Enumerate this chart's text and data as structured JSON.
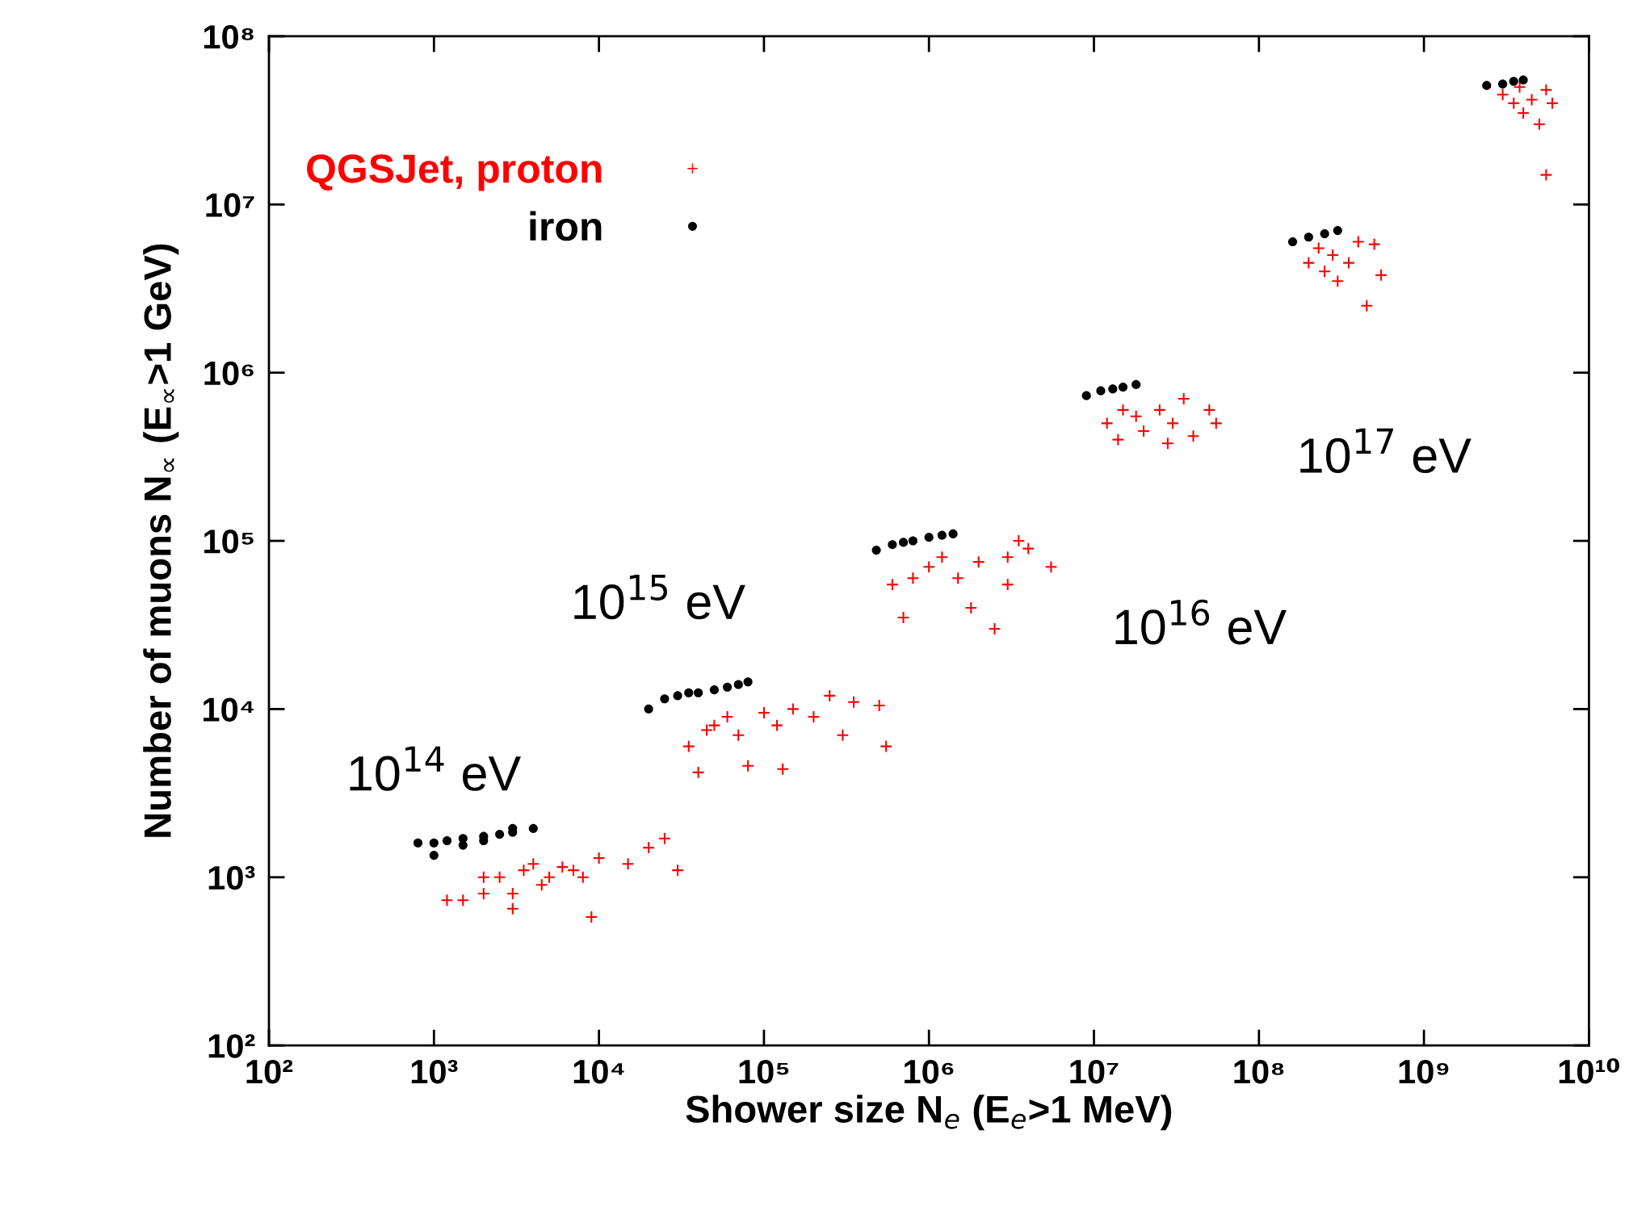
{
  "chart_data": {
    "type": "scatter",
    "xlabel": "Shower size N$_{e}$ (E$_{e}$>1 MeV)",
    "ylabel": "Number of muons N$_{∝}$ (E$_{∝}$>1 GeV)",
    "log": "xy",
    "grid": false,
    "legend": "top left",
    "xlim": [
      100,
      10000000000
    ],
    "ylim": [
      100,
      100000000
    ],
    "xticks": [
      {
        "value": 100,
        "label": "10²"
      },
      {
        "value": 1000,
        "label": "10³"
      },
      {
        "value": 10000,
        "label": "10⁴"
      },
      {
        "value": 100000,
        "label": "10⁵"
      },
      {
        "value": 1000000,
        "label": "10⁶"
      },
      {
        "value": 10000000,
        "label": "10⁷"
      },
      {
        "value": 100000000,
        "label": "10⁸"
      },
      {
        "value": 1000000000,
        "label": "10⁹"
      },
      {
        "value": 10000000000,
        "label": "10¹⁰"
      }
    ],
    "yticks": [
      {
        "value": 100,
        "label": "10²"
      },
      {
        "value": 1000,
        "label": "10³"
      },
      {
        "value": 10000,
        "label": "10⁴"
      },
      {
        "value": 100000,
        "label": "10⁵"
      },
      {
        "value": 1000000,
        "label": "10⁶"
      },
      {
        "value": 10000000,
        "label": "10⁷"
      },
      {
        "value": 100000000,
        "label": "10⁸"
      }
    ],
    "annotations": [
      "10$^{14}$ eV",
      "10$^{15}$ eV",
      "10$^{16}$ eV",
      "10$^{17}$ eV"
    ],
    "series": [
      {
        "name": "QGSJet, proton",
        "color": "#ff0000",
        "marker": "cross",
        "x": [
          1200,
          1500,
          2000,
          2500,
          3000,
          3500,
          4000,
          5000,
          6000,
          8000,
          9000,
          10000,
          15000,
          20000,
          25000,
          30000,
          3000,
          4500,
          7000,
          2000,
          35000,
          40000,
          50000,
          60000,
          70000,
          80000,
          100000,
          120000,
          130000,
          150000,
          200000,
          250000,
          300000,
          350000,
          500000,
          550000,
          45000,
          600000,
          700000,
          800000,
          1000000,
          1200000,
          1500000,
          1800000,
          2000000,
          2500000,
          3000000,
          3500000,
          4000000,
          5500000,
          3000000,
          12000000,
          14000000,
          15000000,
          18000000,
          20000000,
          25000000,
          30000000,
          35000000,
          40000000,
          50000000,
          55000000,
          28000000,
          200000000,
          230000000,
          250000000,
          280000000,
          300000000,
          350000000,
          400000000,
          450000000,
          500000000,
          550000000,
          3000000000,
          3500000000,
          4000000000,
          4500000000,
          5000000000,
          5500000000,
          6000000000,
          5500000000,
          3800000000
        ],
        "values": [
          730,
          730,
          1000,
          1000,
          800,
          1100,
          1200,
          1000,
          1150,
          1000,
          580,
          1300,
          1200,
          1500,
          1700,
          1100,
          650,
          900,
          1100,
          800,
          6000,
          4200,
          8000,
          9000,
          7000,
          4600,
          9500,
          8000,
          4400,
          10000,
          9000,
          12000,
          7000,
          11000,
          10500,
          6000,
          7500,
          55000,
          35000,
          60000,
          70000,
          80000,
          60000,
          40000,
          75000,
          30000,
          80000,
          100000,
          90000,
          70000,
          55000,
          500000,
          400000,
          600000,
          550000,
          450000,
          600000,
          500000,
          700000,
          420000,
          600000,
          500000,
          380000,
          4500000,
          5500000,
          4000000,
          5000000,
          3500000,
          4500000,
          6000000,
          2500000,
          5800000,
          3800000,
          45000000,
          40000000,
          35000000,
          42000000,
          30000000,
          48000000,
          40000000,
          15000000,
          50000000
        ]
      },
      {
        "name": "iron",
        "color": "#000000",
        "marker": "circle",
        "x": [
          800,
          1000,
          1200,
          1500,
          2000,
          2500,
          3000,
          3000,
          4000,
          1000,
          1500,
          2000,
          20000,
          25000,
          30000,
          40000,
          50000,
          60000,
          70000,
          80000,
          35000,
          480000,
          600000,
          700000,
          800000,
          1000000,
          1200000,
          1400000,
          9000000,
          11000000,
          13000000,
          15000000,
          18000000,
          160000000,
          200000000,
          250000000,
          300000000,
          2400000000,
          3000000000,
          3500000000,
          4000000000
        ],
        "values": [
          1600,
          1600,
          1650,
          1700,
          1750,
          1800,
          1850,
          1950,
          1950,
          1350,
          1550,
          1650,
          10000,
          11500,
          12000,
          12500,
          13000,
          13500,
          14000,
          14500,
          12500,
          88000,
          95000,
          98000,
          100000,
          105000,
          108000,
          110000,
          730000,
          780000,
          800000,
          820000,
          850000,
          6000000,
          6400000,
          6700000,
          7000000,
          51000000,
          52000000,
          54000000,
          55000000
        ]
      }
    ]
  }
}
